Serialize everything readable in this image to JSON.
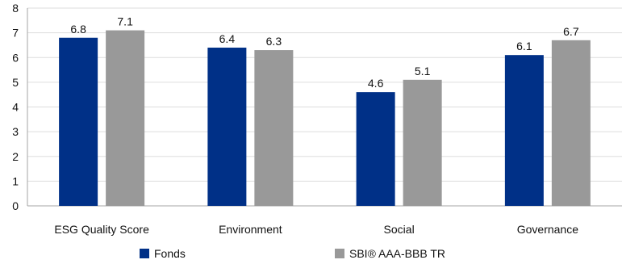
{
  "chart_data": {
    "type": "bar",
    "categories": [
      "ESG Quality Score",
      "Environment",
      "Social",
      "Governance"
    ],
    "series": [
      {
        "name": "Fonds",
        "values": [
          6.8,
          6.4,
          4.6,
          6.1
        ],
        "color": "#003087"
      },
      {
        "name": "SBI® AAA-BBB TR",
        "values": [
          7.1,
          6.3,
          5.1,
          6.7
        ],
        "color": "#999999"
      }
    ],
    "yticks": [
      "0",
      "1",
      "2",
      "3",
      "4",
      "5",
      "6",
      "7",
      "8"
    ],
    "ylim": [
      0,
      8
    ],
    "grid": true,
    "legend": "bottom",
    "colors": {
      "axis": "#a6a6a6",
      "grid": "#dddddd"
    }
  }
}
